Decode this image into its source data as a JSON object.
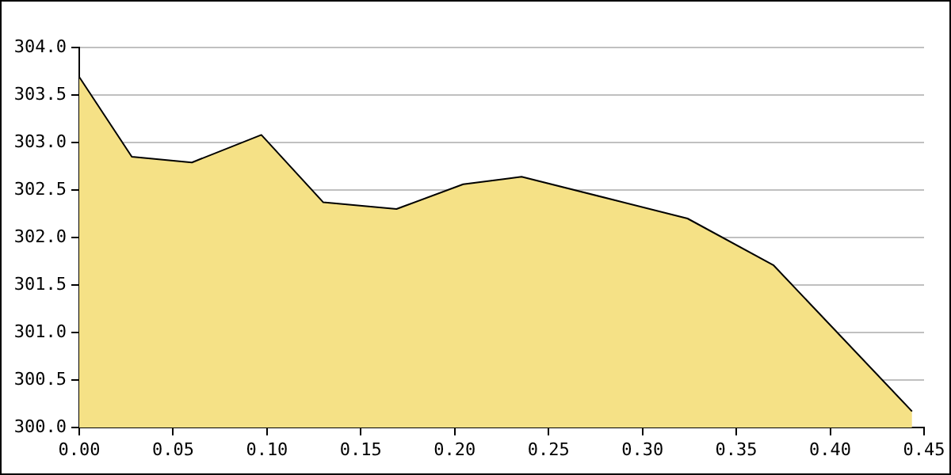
{
  "chart_data": {
    "type": "area",
    "x": [
      0,
      0.028,
      0.06,
      0.097,
      0.13,
      0.169,
      0.2045,
      0.2285,
      0.2356,
      0.324,
      0.3697,
      0.4436
    ],
    "series": [
      {
        "color": "#f5e186",
        "values": [
          303.69,
          302.85,
          302.79,
          303.08,
          302.37,
          302.3,
          302.56,
          302.62,
          302.64,
          302.2,
          301.71,
          300.17
        ]
      }
    ],
    "xlim": [
      0,
      0.45
    ],
    "ylim": [
      300,
      304
    ],
    "xticks": [
      {
        "value": 0,
        "label": "0.00"
      },
      {
        "value": 0.05,
        "label": "0.05"
      },
      {
        "value": 0.1,
        "label": "0.10"
      },
      {
        "value": 0.15,
        "label": "0.15"
      },
      {
        "value": 0.2,
        "label": "0.20"
      },
      {
        "value": 0.25,
        "label": "0.25"
      },
      {
        "value": 0.3,
        "label": "0.30"
      },
      {
        "value": 0.35,
        "label": "0.35"
      },
      {
        "value": 0.4,
        "label": "0.40"
      },
      {
        "value": 0.45,
        "label": "0.45"
      }
    ],
    "yticks": [
      {
        "value": 300,
        "label": "300.0"
      },
      {
        "value": 300.5,
        "label": "300.5"
      },
      {
        "value": 301,
        "label": "301.0"
      },
      {
        "value": 301.5,
        "label": "301.5"
      },
      {
        "value": 302,
        "label": "302.0"
      },
      {
        "value": 302.5,
        "label": "302.5"
      },
      {
        "value": 303,
        "label": "303.0"
      },
      {
        "value": 303.5,
        "label": "303.5"
      },
      {
        "value": 304,
        "label": "304.0"
      }
    ],
    "grid": "y"
  }
}
